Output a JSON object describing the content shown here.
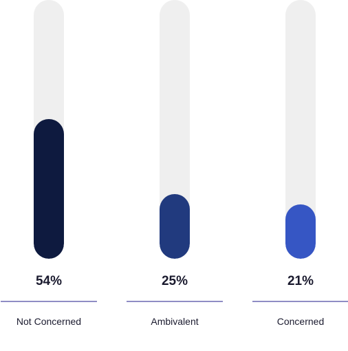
{
  "chart_data": {
    "type": "bar",
    "orientation": "vertical",
    "categories": [
      "Not Concerned",
      "Ambivalent",
      "Concerned"
    ],
    "values": [
      54,
      25,
      21
    ],
    "value_labels": [
      "54%",
      "25%",
      "21%"
    ],
    "colors": [
      "#0e1a3f",
      "#213a7e",
      "#3656c4"
    ],
    "track_color": "#efefef",
    "ylim": [
      0,
      100
    ],
    "grid": false,
    "legend": "none"
  }
}
